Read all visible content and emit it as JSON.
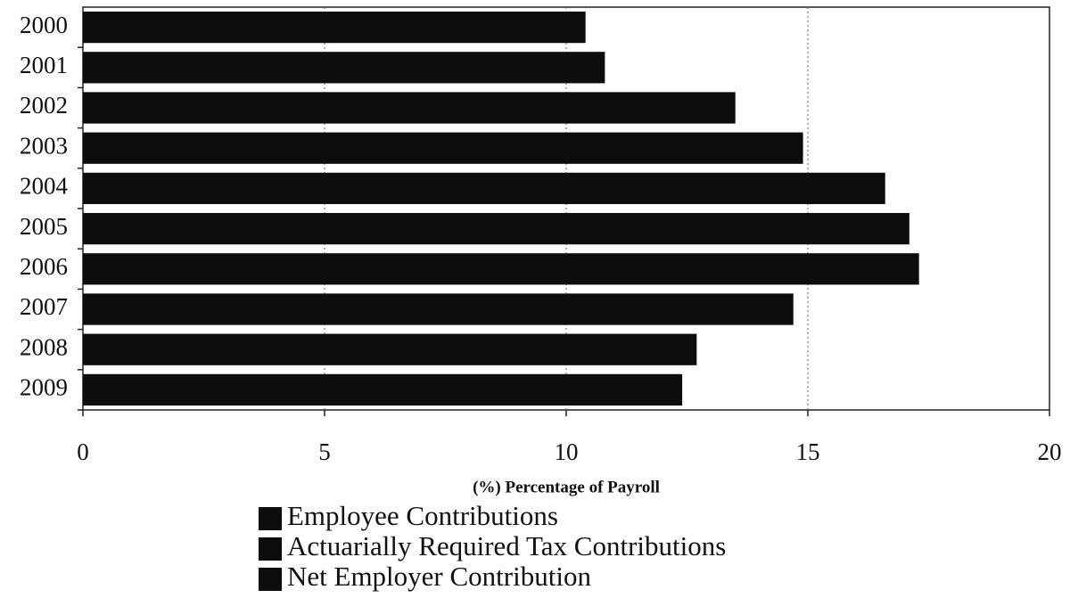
{
  "chart_data": {
    "type": "bar",
    "orientation": "horizontal",
    "categories": [
      "2000",
      "2001",
      "2002",
      "2003",
      "2004",
      "2005",
      "2006",
      "2007",
      "2008",
      "2009"
    ],
    "values": [
      10.4,
      10.8,
      13.5,
      14.9,
      16.6,
      17.1,
      17.3,
      14.7,
      12.7,
      12.4
    ],
    "color": "#0d0d0d",
    "x_label": "(%) Percentage of Payroll",
    "xlim": [
      0,
      20
    ],
    "xticks": [
      0,
      5,
      10,
      15,
      20
    ],
    "grid": true,
    "legend": [
      {
        "name": "Employee Contributions",
        "color": "#0d0d0d"
      },
      {
        "name": "Actuarially Required Tax Contributions",
        "color": "#0d0d0d"
      },
      {
        "name": "Net Employer Contribution",
        "color": "#0d0d0d"
      }
    ],
    "legend_position": "bottom"
  }
}
